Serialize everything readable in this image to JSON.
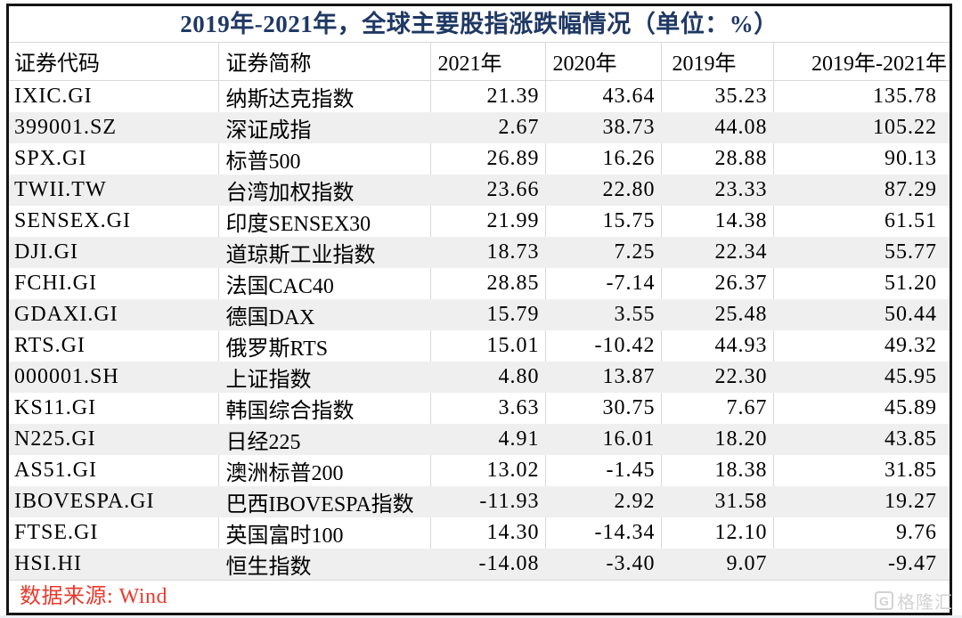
{
  "chart_data": {
    "type": "table",
    "title": "2019年-2021年，全球主要股指涨跌幅情况（单位：%）",
    "columns": [
      "证券代码",
      "证券简称",
      "2021年",
      "2020年",
      "2019年",
      "2019年-2021年"
    ],
    "rows": [
      [
        "IXIC.GI",
        "纳斯达克指数",
        "21.39",
        "43.64",
        "35.23",
        "135.78"
      ],
      [
        "399001.SZ",
        "深证成指",
        "2.67",
        "38.73",
        "44.08",
        "105.22"
      ],
      [
        "SPX.GI",
        "标普500",
        "26.89",
        "16.26",
        "28.88",
        "90.13"
      ],
      [
        "TWII.TW",
        "台湾加权指数",
        "23.66",
        "22.80",
        "23.33",
        "87.29"
      ],
      [
        "SENSEX.GI",
        "印度SENSEX30",
        "21.99",
        "15.75",
        "14.38",
        "61.51"
      ],
      [
        "DJI.GI",
        "道琼斯工业指数",
        "18.73",
        "7.25",
        "22.34",
        "55.77"
      ],
      [
        "FCHI.GI",
        "法国CAC40",
        "28.85",
        "-7.14",
        "26.37",
        "51.20"
      ],
      [
        "GDAXI.GI",
        "德国DAX",
        "15.79",
        "3.55",
        "25.48",
        "50.44"
      ],
      [
        "RTS.GI",
        "俄罗斯RTS",
        "15.01",
        "-10.42",
        "44.93",
        "49.32"
      ],
      [
        "000001.SH",
        "上证指数",
        "4.80",
        "13.87",
        "22.30",
        "45.95"
      ],
      [
        "KS11.GI",
        "韩国综合指数",
        "3.63",
        "30.75",
        "7.67",
        "45.89"
      ],
      [
        "N225.GI",
        "日经225",
        "4.91",
        "16.01",
        "18.20",
        "43.85"
      ],
      [
        "AS51.GI",
        "澳洲标普200",
        "13.02",
        "-1.45",
        "18.38",
        "31.85"
      ],
      [
        "IBOVESPA.GI",
        "巴西IBOVESPA指数",
        "-11.93",
        "2.92",
        "31.58",
        "19.27"
      ],
      [
        "FTSE.GI",
        "英国富时100",
        "14.30",
        "-14.34",
        "12.10",
        "9.76"
      ],
      [
        "HSI.HI",
        "恒生指数",
        "-14.08",
        "-3.40",
        "9.07",
        "-9.47"
      ]
    ],
    "source_note": "数据来源: Wind",
    "layout": {
      "striped_rows": true,
      "grid": "vertical-on-white-rows",
      "header_position": "top"
    }
  },
  "footer": {
    "source": "数据来源: Wind"
  },
  "watermark": {
    "icon_letter": "G",
    "text": "格隆汇"
  },
  "colors": {
    "title_text": "#1f3864",
    "source_text": "#e8392c",
    "row_stripe": "#efefef",
    "grid_line": "#d9d9d9",
    "outer_border": "#141414",
    "watermark": "#d2d2d2"
  }
}
